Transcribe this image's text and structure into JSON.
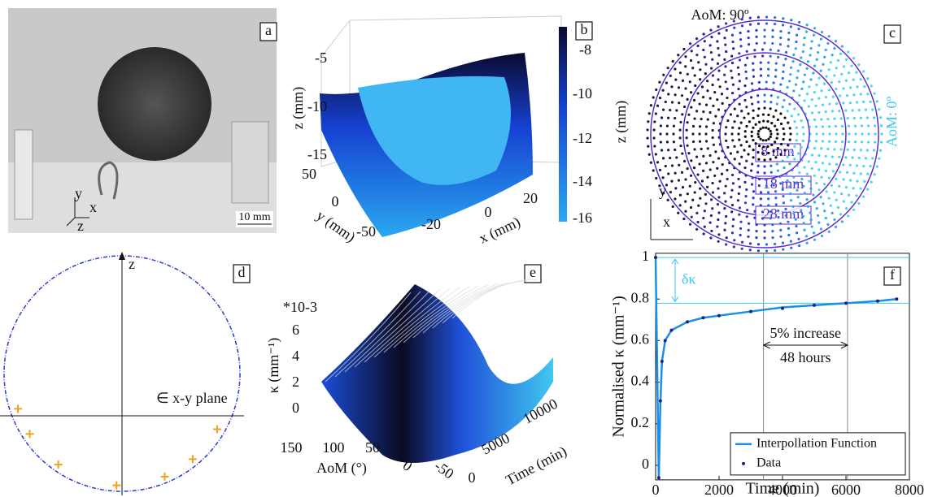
{
  "panels": {
    "a": {
      "label": "a",
      "scale_bar": "10 mm",
      "axes": [
        "y",
        "x",
        "z"
      ]
    },
    "b": {
      "label": "b",
      "z_axis": {
        "title": "z (mm)",
        "ticks": [
          "-5",
          "-10",
          "-15"
        ]
      },
      "y_axis": {
        "title": "y (mm)",
        "ticks": [
          "50",
          "0",
          "-50"
        ]
      },
      "x_axis": {
        "title": "x (mm)",
        "ticks": [
          "-20",
          "0",
          "20"
        ]
      },
      "colorbar": {
        "title": "z (mm)",
        "ticks": [
          "-8",
          "-10",
          "-12",
          "-14",
          "-16"
        ]
      }
    },
    "c": {
      "label": "c",
      "top": "AoM: 90º",
      "right": "AoM: 0º",
      "rings": [
        "8 mm",
        "18 mm",
        "28 mm"
      ],
      "axes": [
        "y",
        "x"
      ]
    },
    "d": {
      "label": "d",
      "z": "z",
      "plane": "∈  x-y plane"
    },
    "e": {
      "label": "e",
      "multiplier": "*10-3",
      "k_axis": {
        "title": "κ (mm⁻¹)",
        "ticks": [
          "6",
          "4",
          "2",
          "0"
        ]
      },
      "aom_axis": {
        "title": "AoM (°)",
        "ticks": [
          "150",
          "100",
          "50",
          "0",
          "-50"
        ]
      },
      "time_axis": {
        "title": "Time (min)",
        "ticks": [
          "0",
          "5000",
          "10000"
        ]
      }
    }
  },
  "chart_data": {
    "type": "line",
    "label": "f",
    "x_label": "Time (min)",
    "y_label": "Normalised κ (mm⁻¹)",
    "x": [
      0,
      100,
      150,
      200,
      300,
      500,
      1000,
      1500,
      2000,
      3000,
      4000,
      5000,
      6000,
      7000,
      7600
    ],
    "series": [
      {
        "name": "Interpollation Function",
        "color": "#1a8fe8",
        "values": [
          1,
          -0.06,
          0.3,
          0.5,
          0.6,
          0.65,
          0.69,
          0.71,
          0.72,
          0.74,
          0.76,
          0.77,
          0.78,
          0.79,
          0.8
        ]
      },
      {
        "name": "Data",
        "color": "#1a237e",
        "values": [
          1,
          -0.06,
          0.31,
          0.5,
          0.6,
          0.65,
          0.69,
          0.71,
          0.72,
          0.74,
          0.755,
          0.77,
          0.78,
          0.79,
          0.8
        ]
      }
    ],
    "xlim": [
      0,
      8000
    ],
    "ylim": [
      -0.07,
      1.02
    ],
    "xticks": [
      0,
      2000,
      4000,
      6000,
      8000
    ],
    "yticks": [
      0,
      0.2,
      0.4,
      0.6,
      0.8,
      1
    ],
    "reference_x": [
      3400,
      6050
    ],
    "reference_y": [
      1,
      0.78
    ],
    "annotations": {
      "delta": "δκ",
      "increase": "5% increase",
      "hours": "48 hours"
    },
    "legend": "lower right"
  }
}
